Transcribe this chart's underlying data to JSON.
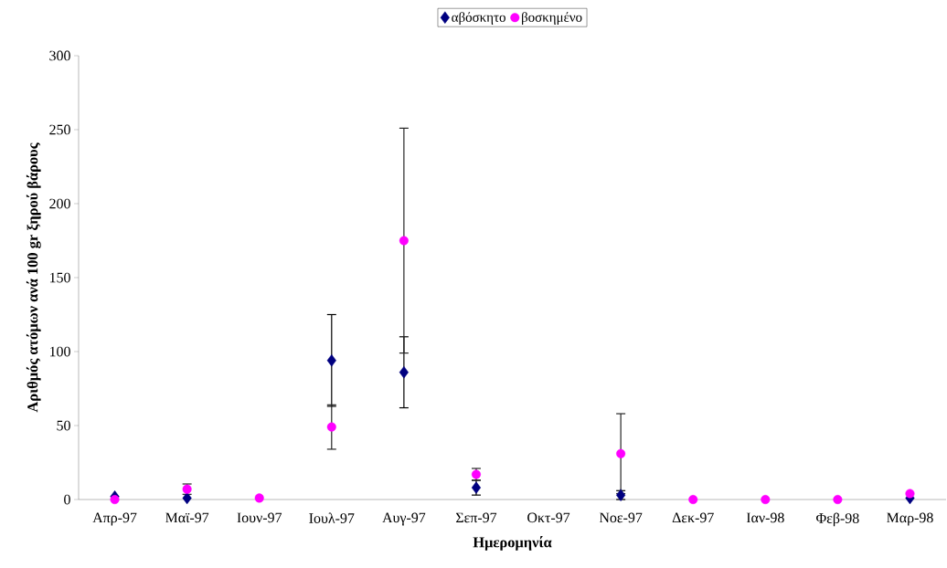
{
  "chart_data": {
    "type": "scatter",
    "xlabel": "Ημερομηνία",
    "ylabel": "Αριθμός ατόμων ανά 100 gr ξηρού βάρους",
    "categories": [
      "Απρ-97",
      "Μαϊ-97",
      "Ιουν-97",
      "Ιουλ-97",
      "Αυγ-97",
      "Σεπ-97",
      "Οκτ-97",
      "Νοε-97",
      "Δεκ-97",
      "Ιαν-98",
      "Φεβ-98",
      "Μαρ-98"
    ],
    "series": [
      {
        "name": "αβόσκητο",
        "color": "#000080",
        "marker": "diamond",
        "values": [
          2,
          1,
          null,
          94,
          86,
          8,
          null,
          3,
          null,
          null,
          null,
          1
        ],
        "errors": [
          null,
          null,
          null,
          31,
          24,
          5,
          null,
          3,
          null,
          null,
          null,
          null
        ]
      },
      {
        "name": "βοσκημένο",
        "color": "#ff00ff",
        "marker": "circle",
        "values": [
          0,
          7,
          1,
          49,
          175,
          17,
          null,
          31,
          0,
          0,
          0,
          4
        ],
        "errors": [
          null,
          3.5,
          null,
          15,
          76,
          4,
          null,
          27,
          null,
          null,
          null,
          null
        ]
      }
    ],
    "ylim": [
      0,
      300
    ],
    "yticks": [
      0,
      50,
      100,
      150,
      200,
      250,
      300
    ],
    "grid": false,
    "legend": "top"
  }
}
